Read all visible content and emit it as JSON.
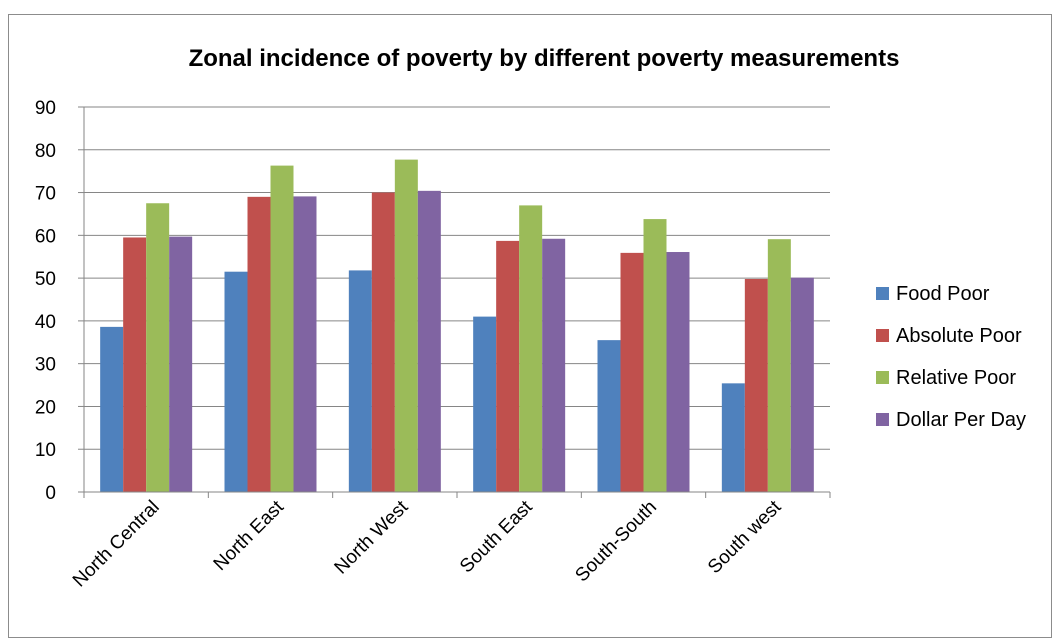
{
  "chart_data": {
    "type": "bar",
    "title": "Zonal incidence of poverty by different poverty measurements",
    "xlabel": "",
    "ylabel": "",
    "ylim": [
      0,
      90
    ],
    "yticks": [
      0,
      10,
      20,
      30,
      40,
      50,
      60,
      70,
      80,
      90
    ],
    "grid": true,
    "legend_position": "right",
    "categories": [
      "North Central",
      "North East",
      "North West",
      "South East",
      "South-South",
      "South west"
    ],
    "series": [
      {
        "name": "Food Poor",
        "color": "#4f81bd",
        "values": [
          38.6,
          51.5,
          51.8,
          41.0,
          35.5,
          25.4
        ]
      },
      {
        "name": "Absolute Poor",
        "color": "#c0504d",
        "values": [
          59.5,
          69.0,
          70.0,
          58.7,
          55.9,
          49.8
        ]
      },
      {
        "name": "Relative Poor",
        "color": "#9bbb59",
        "values": [
          67.5,
          76.3,
          77.7,
          67.0,
          63.8,
          59.1
        ]
      },
      {
        "name": "Dollar Per Day",
        "color": "#8064a2",
        "values": [
          59.7,
          69.1,
          70.4,
          59.2,
          56.1,
          50.1
        ]
      }
    ]
  }
}
